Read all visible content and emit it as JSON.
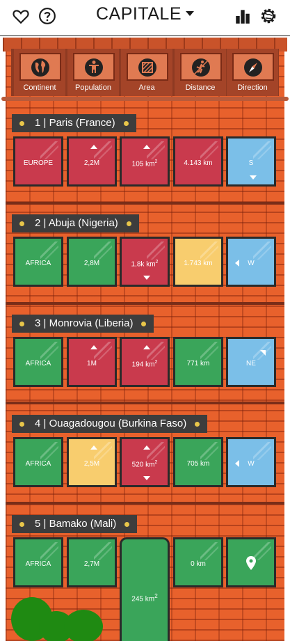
{
  "header": {
    "title": "CAPITALE",
    "icons": [
      "heart-icon",
      "help-icon",
      "stats-icon",
      "settings-icon"
    ]
  },
  "categories": [
    "Continent",
    "Population",
    "Area",
    "Distance",
    "Direction"
  ],
  "rows": [
    {
      "label": "1 | Paris (France)",
      "tiles": [
        {
          "text": "EUROPE",
          "color": "red",
          "arrow": "none"
        },
        {
          "text": "2,2M",
          "color": "red",
          "arrow": "up"
        },
        {
          "text": "105 km",
          "sup": "2",
          "color": "red",
          "arrow": "up"
        },
        {
          "text": "4.143 km",
          "color": "red",
          "arrow": "none"
        },
        {
          "text": "S",
          "color": "blue",
          "arrow": "down"
        }
      ]
    },
    {
      "label": "2 | Abuja (Nigeria)",
      "tiles": [
        {
          "text": "AFRICA",
          "color": "green",
          "arrow": "none"
        },
        {
          "text": "2,8M",
          "color": "green",
          "arrow": "none"
        },
        {
          "text": "1,8k km",
          "sup": "2",
          "color": "red",
          "arrow": "down"
        },
        {
          "text": "1.743 km",
          "color": "yellow",
          "arrow": "none"
        },
        {
          "text": "W",
          "color": "blue",
          "arrow": "left"
        }
      ]
    },
    {
      "label": "3 | Monrovia (Liberia)",
      "tiles": [
        {
          "text": "AFRICA",
          "color": "green",
          "arrow": "none"
        },
        {
          "text": "1M",
          "color": "red",
          "arrow": "up"
        },
        {
          "text": "194 km",
          "sup": "2",
          "color": "red",
          "arrow": "up"
        },
        {
          "text": "771 km",
          "color": "green",
          "arrow": "none"
        },
        {
          "text": "NE",
          "color": "blue",
          "arrow": "diag"
        }
      ]
    },
    {
      "label": "4 | Ouagadougou (Burkina Faso)",
      "tiles": [
        {
          "text": "AFRICA",
          "color": "green",
          "arrow": "none"
        },
        {
          "text": "2,5M",
          "color": "yellow",
          "arrow": "up"
        },
        {
          "text": "520 km",
          "sup": "2",
          "color": "red",
          "arrow": "both"
        },
        {
          "text": "705 km",
          "color": "green",
          "arrow": "none"
        },
        {
          "text": "W",
          "color": "blue",
          "arrow": "left"
        }
      ]
    },
    {
      "label": "5 | Bamako (Mali)",
      "tiles": [
        {
          "text": "AFRICA",
          "color": "green",
          "arrow": "none"
        },
        {
          "text": "2,7M",
          "color": "green",
          "arrow": "none"
        },
        {
          "text": "245 km",
          "sup": "2",
          "color": "green",
          "arrow": "none"
        },
        {
          "text": "0 km",
          "color": "green",
          "arrow": "none"
        },
        {
          "text": "",
          "color": "green",
          "icon": "location-pin-icon"
        }
      ]
    }
  ]
}
